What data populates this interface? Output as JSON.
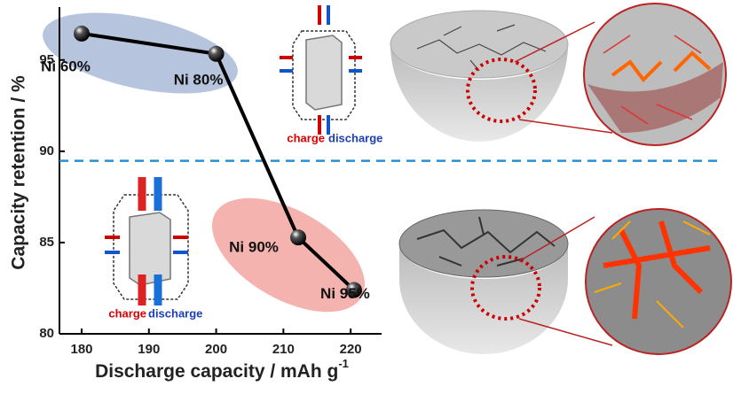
{
  "chart_data": {
    "type": "line",
    "x_label": "Discharge capacity / mAh g",
    "x_label_sup": "-1",
    "y_label": "Capacity retention / %",
    "x": [
      180,
      200,
      212.2,
      220.5
    ],
    "values": [
      96.45,
      95.34,
      85.28,
      82.4
    ],
    "point_labels": [
      "Ni 60%",
      "Ni 80%",
      "Ni 90%",
      "Ni 95%"
    ],
    "color": "#000000",
    "xlim": [
      176.7,
      224.6
    ],
    "xticks": [
      180,
      190,
      200,
      210,
      220
    ],
    "ylim": [
      80,
      97.9
    ],
    "yticks": [
      80,
      85,
      90,
      95
    ],
    "reference_line": 89.48,
    "reference_color": "#2a8fd0",
    "annotations": [
      "charge",
      "discharge",
      "charge",
      "discharge"
    ]
  }
}
